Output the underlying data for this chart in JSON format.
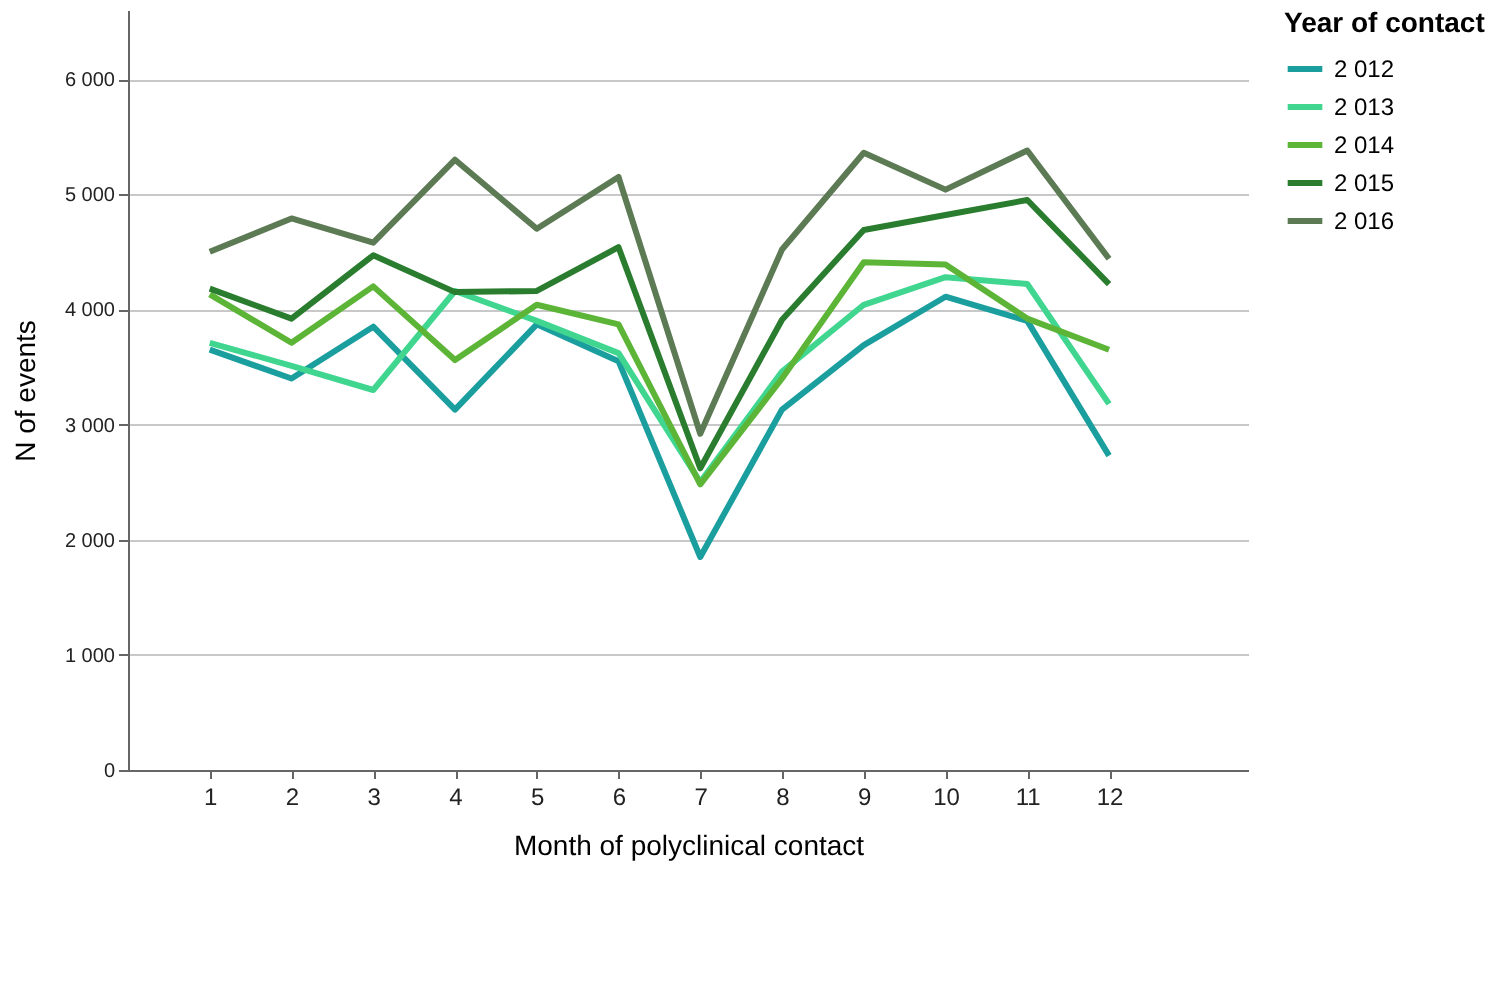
{
  "chart_data": {
    "type": "line",
    "xlabel": "Month of polyclinical contact",
    "ylabel": "N of events",
    "legend_title": "Year of contact",
    "x": [
      1,
      2,
      3,
      4,
      5,
      6,
      7,
      8,
      9,
      10,
      11,
      12
    ],
    "xlim": [
      0,
      13.7
    ],
    "xticks": [
      1,
      2,
      3,
      4,
      5,
      6,
      7,
      8,
      9,
      10,
      11,
      12
    ],
    "series": [
      {
        "name": "2 012",
        "color": "#1a9e9e",
        "values": [
          3650,
          3400,
          3850,
          3130,
          3870,
          3550,
          1850,
          3130,
          3690,
          4110,
          3900,
          2730
        ]
      },
      {
        "name": "2 013",
        "color": "#40d690",
        "values": [
          3710,
          3510,
          3300,
          4160,
          3900,
          3620,
          2500,
          3460,
          4040,
          4280,
          4220,
          3180
        ]
      },
      {
        "name": "2 014",
        "color": "#5cb536",
        "values": [
          4130,
          3710,
          4200,
          3560,
          4040,
          3870,
          2480,
          3400,
          4410,
          4390,
          3920,
          3650
        ]
      },
      {
        "name": "2 015",
        "color": "#2a7d2e",
        "values": [
          4180,
          3920,
          4470,
          4150,
          4160,
          4540,
          2620,
          3910,
          4690,
          4820,
          4950,
          4220
        ]
      },
      {
        "name": "2 016",
        "color": "#5c7a54",
        "values": [
          4500,
          4790,
          4580,
          5300,
          4700,
          5150,
          2920,
          4520,
          5360,
          5040,
          5380,
          4440
        ]
      }
    ],
    "ylim": [
      0,
      6600
    ],
    "yticks": [
      {
        "value": 0,
        "label": "0"
      },
      {
        "value": 1000,
        "label": "1 000"
      },
      {
        "value": 2000,
        "label": "2 000"
      },
      {
        "value": 3000,
        "label": "3 000"
      },
      {
        "value": 4000,
        "label": "4 000"
      },
      {
        "value": 5000,
        "label": "5 000"
      },
      {
        "value": 6000,
        "label": "6 000"
      }
    ],
    "grid": "y",
    "legend": "top right",
    "line_style": "solid",
    "marker": "none"
  }
}
